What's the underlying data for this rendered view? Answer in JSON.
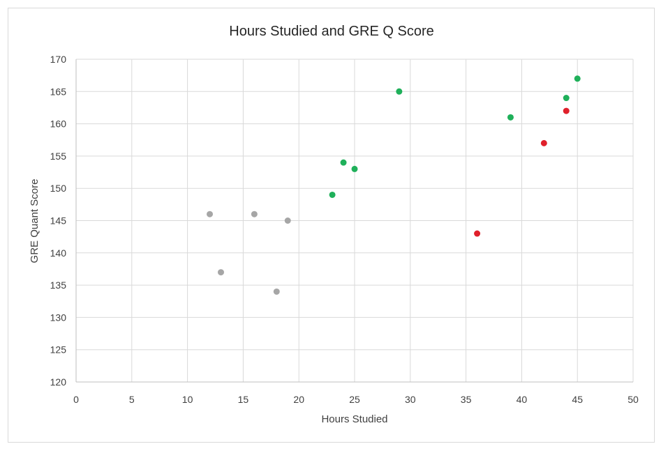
{
  "chart_data": {
    "type": "scatter",
    "title": "Hours Studied and GRE Q Score",
    "xlabel": "Hours Studied",
    "ylabel": "GRE Quant Score",
    "xlim": [
      0,
      50
    ],
    "ylim": [
      120,
      170
    ],
    "xticks": [
      0,
      5,
      10,
      15,
      20,
      25,
      30,
      35,
      40,
      45,
      50
    ],
    "yticks": [
      120,
      125,
      130,
      135,
      140,
      145,
      150,
      155,
      160,
      165,
      170
    ],
    "grid": true,
    "legend": false,
    "series": [
      {
        "color": "#a6a6a6",
        "points": [
          {
            "x": 12,
            "y": 146
          },
          {
            "x": 13,
            "y": 137
          },
          {
            "x": 16,
            "y": 146
          },
          {
            "x": 18,
            "y": 134
          },
          {
            "x": 19,
            "y": 145
          }
        ]
      },
      {
        "color": "#1fb05a",
        "points": [
          {
            "x": 23,
            "y": 149
          },
          {
            "x": 24,
            "y": 154
          },
          {
            "x": 25,
            "y": 153
          },
          {
            "x": 29,
            "y": 165
          },
          {
            "x": 39,
            "y": 161
          },
          {
            "x": 44,
            "y": 164
          },
          {
            "x": 45,
            "y": 167
          }
        ]
      },
      {
        "color": "#e0202b",
        "points": [
          {
            "x": 36,
            "y": 143
          },
          {
            "x": 42,
            "y": 157
          },
          {
            "x": 44,
            "y": 162
          }
        ]
      }
    ]
  }
}
